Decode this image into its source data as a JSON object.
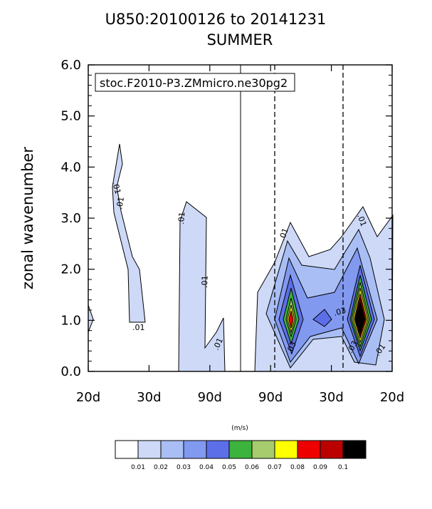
{
  "chart_data": {
    "type": "contour",
    "title": "U850:20100126 to 20141231",
    "subtitle": "SUMMER",
    "ylabel": "zonal wavenumber",
    "ylim": [
      0,
      6
    ],
    "yticks": [
      "0.0",
      "1.0",
      "2.0",
      "3.0",
      "4.0",
      "5.0",
      "6.0"
    ],
    "xticks": [
      "20d",
      "30d",
      "90d",
      "90d",
      "30d",
      "20d"
    ],
    "legend_text": "stoc.F2010-P3.ZMmicro.ne30pg2",
    "units_label": "(m/s)",
    "colorbar": {
      "levels": [
        "0.01",
        "0.02",
        "0.03",
        "0.04",
        "0.05",
        "0.06",
        "0.07",
        "0.08",
        "0.09",
        "0.1"
      ],
      "colors": [
        "#ffffff",
        "#cdd9f7",
        "#a9bef4",
        "#8299f0",
        "#5c6fe8",
        "#3cb33c",
        "#a6cc6e",
        "#ffff00",
        "#ee0000",
        "#bb0000",
        "#000000"
      ]
    },
    "contour_labels": [
      ".01",
      ".01",
      ".01",
      ".01",
      ".01",
      ".01",
      ".01",
      ".03",
      ".03",
      ".01",
      ".03"
    ]
  }
}
